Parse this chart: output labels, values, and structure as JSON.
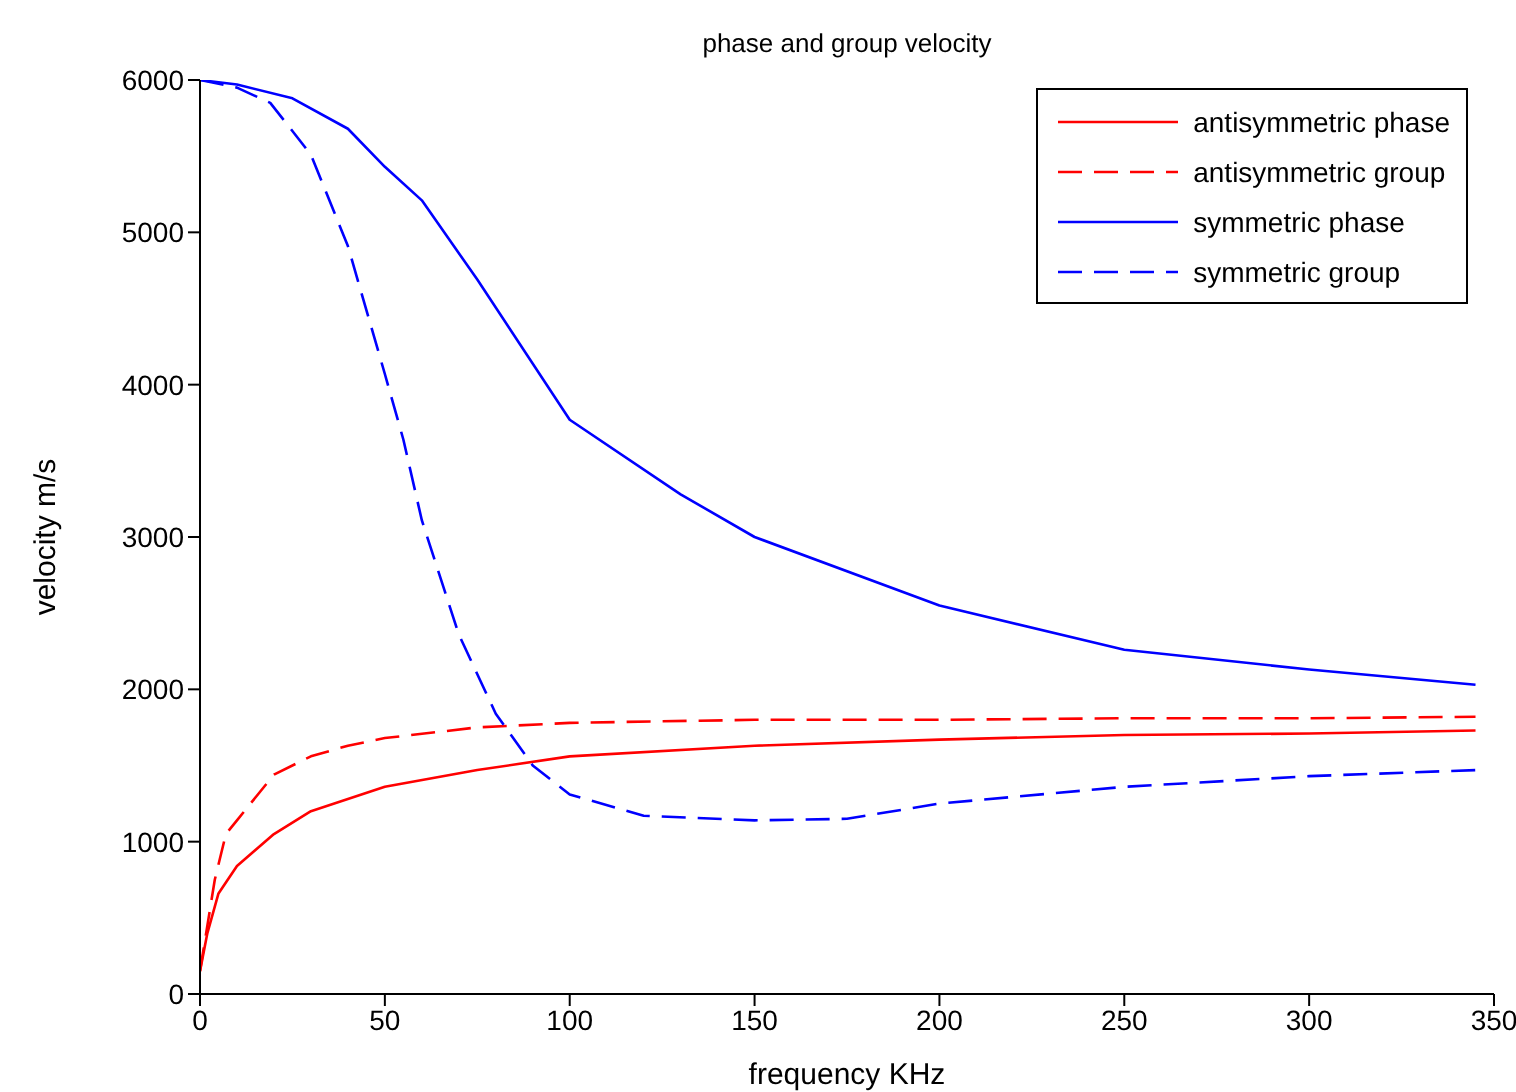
{
  "chart_data": {
    "type": "line",
    "title": "phase and group velocity",
    "xlabel": "frequency KHz",
    "ylabel": "velocity m/s",
    "xlim": [
      0,
      350
    ],
    "xticks": [
      0,
      50,
      100,
      150,
      200,
      250,
      300,
      350
    ],
    "ylim": [
      0,
      6000
    ],
    "yticks": [
      0,
      1000,
      2000,
      3000,
      4000,
      5000,
      6000
    ],
    "grid": false,
    "legend": "top right",
    "marker": "none",
    "series": [
      {
        "name": "antisymmetric phase",
        "color": "#ff0000",
        "line_style": "solid",
        "x": [
          0,
          2,
          5,
          10,
          20,
          30,
          50,
          75,
          100,
          150,
          200,
          250,
          300,
          345
        ],
        "values": [
          150,
          400,
          660,
          840,
          1050,
          1200,
          1360,
          1470,
          1560,
          1630,
          1670,
          1700,
          1710,
          1730
        ]
      },
      {
        "name": "antisymmetric group",
        "color": "#ff0000",
        "line_style": "dashed",
        "x": [
          0,
          2,
          4,
          7,
          10,
          20,
          30,
          40,
          50,
          75,
          100,
          150,
          200,
          250,
          300,
          345
        ],
        "values": [
          150,
          450,
          750,
          1050,
          1140,
          1440,
          1560,
          1630,
          1680,
          1750,
          1780,
          1800,
          1800,
          1810,
          1810,
          1820
        ]
      },
      {
        "name": "symmetric phase",
        "color": "#0000ff",
        "line_style": "solid",
        "x": [
          0,
          10,
          25,
          40,
          50,
          60,
          75,
          100,
          130,
          150,
          200,
          250,
          300,
          345
        ],
        "values": [
          6000,
          5970,
          5880,
          5680,
          5430,
          5210,
          4690,
          3770,
          3280,
          3000,
          2550,
          2260,
          2130,
          2030
        ]
      },
      {
        "name": "symmetric group",
        "color": "#0000ff",
        "line_style": "dashed",
        "x": [
          0,
          10,
          19,
          30,
          40,
          50,
          55,
          60,
          70,
          80,
          90,
          100,
          120,
          150,
          175,
          200,
          250,
          300,
          345
        ],
        "values": [
          6000,
          5950,
          5850,
          5510,
          4910,
          4070,
          3640,
          3110,
          2360,
          1840,
          1500,
          1310,
          1170,
          1140,
          1150,
          1250,
          1360,
          1430,
          1470
        ]
      }
    ]
  }
}
